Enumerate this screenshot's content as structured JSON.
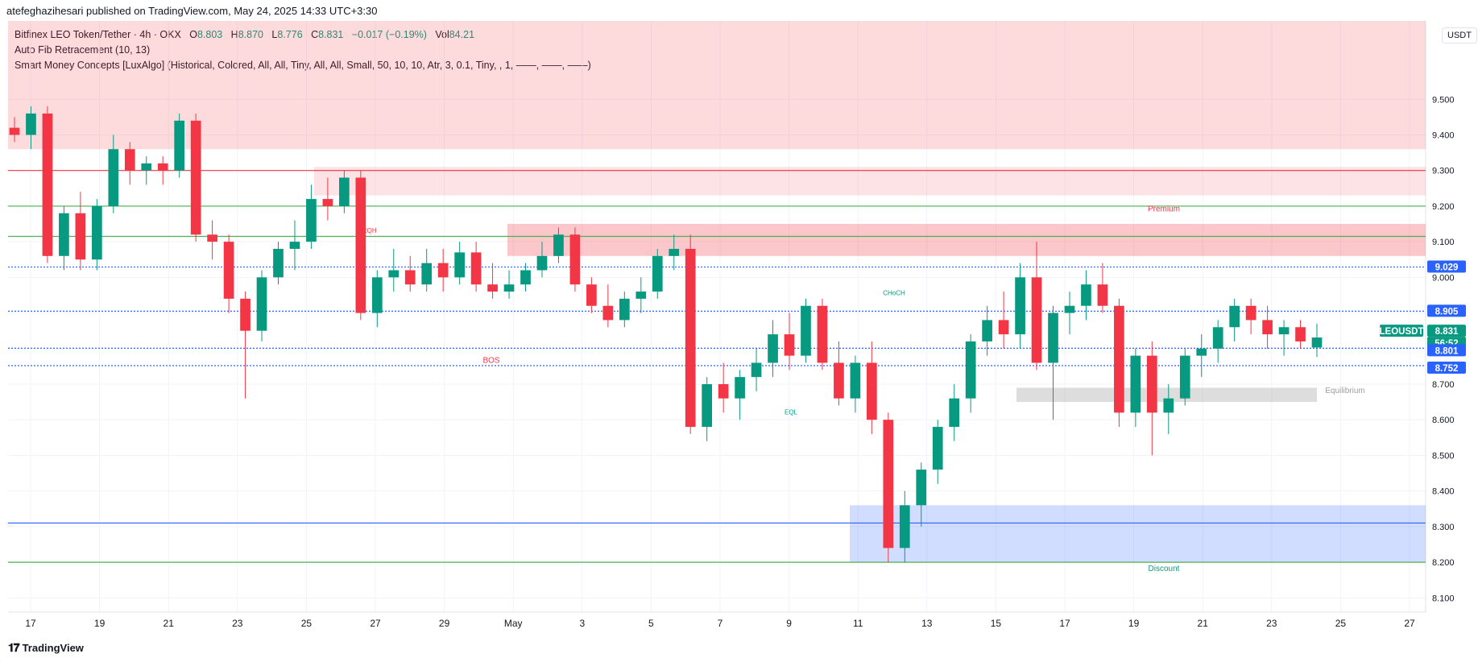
{
  "header": {
    "published_by": "atefeghazihesari published on TradingView.com, May 24, 2025 14:33 UTC+3:30"
  },
  "legend": {
    "symbol_name": "Bitfinex LEO Token/Tether · 4h · OKX",
    "o_label": "O",
    "o": "8.803",
    "h_label": "H",
    "h": "8.870",
    "l_label": "L",
    "l": "8.776",
    "c_label": "C",
    "c": "8.831",
    "change": "−0.017 (−0.19%)",
    "vol_label": "Vol",
    "vol": "84.21",
    "indicator_1": "Auto Fib Retracement (10, 13)",
    "indicator_2": "Smart Money Concepts [LuxAlgo] (Historical, Colored, All, All, Tiny, All, All, Small, 50, 10, 10, Atr, 3, 0.1, Tiny, , 1, ——, ——, ——)"
  },
  "currency_button": "USDT",
  "footer": {
    "brand": "TradingView"
  },
  "colors": {
    "up": "#089981",
    "down": "#f23645",
    "blue": "#2962ff",
    "grid": "#f0f3fa"
  },
  "chart_data": {
    "type": "candlestick",
    "symbol": "LEOUSDT",
    "timeframe": "4h",
    "ylim": [
      8.06,
      9.72
    ],
    "y_ticks": [
      "9.500",
      "9.400",
      "9.300",
      "9.200",
      "9.100",
      "9.000",
      "8.900",
      "8.800",
      "8.700",
      "8.600",
      "8.500",
      "8.400",
      "8.300",
      "8.200",
      "8.100"
    ],
    "x_ticks": [
      "17",
      "19",
      "21",
      "23",
      "25",
      "27",
      "29",
      "May",
      "3",
      "5",
      "7",
      "9",
      "11",
      "13",
      "15",
      "17",
      "19",
      "21",
      "23",
      "25",
      "27"
    ],
    "candles_approx": [
      [
        9.42,
        9.45,
        9.38,
        9.4
      ],
      [
        9.4,
        9.48,
        9.36,
        9.46
      ],
      [
        9.46,
        9.48,
        9.04,
        9.06
      ],
      [
        9.06,
        9.2,
        9.02,
        9.18
      ],
      [
        9.18,
        9.24,
        9.02,
        9.05
      ],
      [
        9.05,
        9.22,
        9.02,
        9.2
      ],
      [
        9.2,
        9.4,
        9.18,
        9.36
      ],
      [
        9.36,
        9.38,
        9.26,
        9.3
      ],
      [
        9.3,
        9.34,
        9.26,
        9.32
      ],
      [
        9.32,
        9.34,
        9.26,
        9.3
      ],
      [
        9.3,
        9.46,
        9.28,
        9.44
      ],
      [
        9.44,
        9.46,
        9.1,
        9.12
      ],
      [
        9.12,
        9.16,
        9.05,
        9.1
      ],
      [
        9.1,
        9.12,
        8.9,
        8.94
      ],
      [
        8.94,
        8.96,
        8.66,
        8.85
      ],
      [
        8.85,
        9.02,
        8.82,
        9.0
      ],
      [
        9.0,
        9.1,
        8.98,
        9.08
      ],
      [
        9.08,
        9.16,
        9.02,
        9.1
      ],
      [
        9.1,
        9.26,
        9.08,
        9.22
      ],
      [
        9.22,
        9.28,
        9.16,
        9.2
      ],
      [
        9.2,
        9.3,
        9.18,
        9.28
      ],
      [
        9.28,
        9.3,
        8.88,
        8.9
      ],
      [
        8.9,
        9.02,
        8.86,
        9.0
      ],
      [
        9.0,
        9.08,
        8.96,
        9.02
      ],
      [
        9.02,
        9.06,
        8.96,
        8.98
      ],
      [
        8.98,
        9.08,
        8.96,
        9.04
      ],
      [
        9.04,
        9.08,
        8.96,
        9.0
      ],
      [
        9.0,
        9.1,
        8.98,
        9.07
      ],
      [
        9.07,
        9.1,
        8.96,
        8.98
      ],
      [
        8.98,
        9.04,
        8.94,
        8.96
      ],
      [
        8.96,
        9.02,
        8.94,
        8.98
      ],
      [
        8.98,
        9.04,
        8.96,
        9.02
      ],
      [
        9.02,
        9.1,
        9.0,
        9.06
      ],
      [
        9.06,
        9.14,
        9.04,
        9.12
      ],
      [
        9.12,
        9.14,
        8.96,
        8.98
      ],
      [
        8.98,
        9.0,
        8.9,
        8.92
      ],
      [
        8.92,
        8.98,
        8.86,
        8.88
      ],
      [
        8.88,
        8.96,
        8.86,
        8.94
      ],
      [
        8.94,
        9.0,
        8.9,
        8.96
      ],
      [
        8.96,
        9.08,
        8.94,
        9.06
      ],
      [
        9.06,
        9.12,
        9.02,
        9.08
      ],
      [
        9.08,
        9.12,
        8.56,
        8.58
      ],
      [
        8.58,
        8.72,
        8.54,
        8.7
      ],
      [
        8.7,
        8.76,
        8.62,
        8.66
      ],
      [
        8.66,
        8.74,
        8.6,
        8.72
      ],
      [
        8.72,
        8.8,
        8.68,
        8.76
      ],
      [
        8.76,
        8.88,
        8.72,
        8.84
      ],
      [
        8.84,
        8.9,
        8.74,
        8.78
      ],
      [
        8.78,
        8.94,
        8.76,
        8.92
      ],
      [
        8.92,
        8.94,
        8.74,
        8.76
      ],
      [
        8.76,
        8.82,
        8.64,
        8.66
      ],
      [
        8.66,
        8.78,
        8.62,
        8.76
      ],
      [
        8.76,
        8.82,
        8.56,
        8.6
      ],
      [
        8.6,
        8.62,
        8.2,
        8.24
      ],
      [
        8.24,
        8.4,
        8.2,
        8.36
      ],
      [
        8.36,
        8.48,
        8.3,
        8.46
      ],
      [
        8.46,
        8.6,
        8.42,
        8.58
      ],
      [
        8.58,
        8.7,
        8.54,
        8.66
      ],
      [
        8.66,
        8.84,
        8.62,
        8.82
      ],
      [
        8.82,
        8.92,
        8.78,
        8.88
      ],
      [
        8.88,
        8.96,
        8.8,
        8.84
      ],
      [
        8.84,
        9.04,
        8.8,
        9.0
      ],
      [
        9.0,
        9.1,
        8.74,
        8.76
      ],
      [
        8.76,
        8.92,
        8.6,
        8.9
      ],
      [
        8.9,
        8.96,
        8.84,
        8.92
      ],
      [
        8.92,
        9.02,
        8.88,
        8.98
      ],
      [
        8.98,
        9.04,
        8.9,
        8.92
      ],
      [
        8.92,
        8.94,
        8.58,
        8.62
      ],
      [
        8.62,
        8.8,
        8.58,
        8.78
      ],
      [
        8.78,
        8.82,
        8.5,
        8.62
      ],
      [
        8.62,
        8.7,
        8.56,
        8.66
      ],
      [
        8.66,
        8.8,
        8.64,
        8.78
      ],
      [
        8.78,
        8.84,
        8.72,
        8.8
      ],
      [
        8.8,
        8.88,
        8.76,
        8.86
      ],
      [
        8.86,
        8.94,
        8.82,
        8.92
      ],
      [
        8.92,
        8.94,
        8.84,
        8.88
      ],
      [
        8.88,
        8.92,
        8.8,
        8.84
      ],
      [
        8.84,
        8.88,
        8.78,
        8.86
      ],
      [
        8.86,
        8.88,
        8.8,
        8.82
      ],
      [
        8.803,
        8.87,
        8.776,
        8.831
      ]
    ],
    "horizontal_lines": [
      {
        "value": 9.3,
        "color": "#f23645"
      },
      {
        "value": 9.2,
        "color": "#4caf50"
      },
      {
        "value": 9.115,
        "color": "#4caf50"
      },
      {
        "value": 9.029,
        "color": "#2962ff",
        "dashed": true
      },
      {
        "value": 8.905,
        "color": "#2962ff",
        "dashed": true
      },
      {
        "value": 8.801,
        "color": "#2962ff",
        "dashed": true
      },
      {
        "value": 8.752,
        "color": "#2962ff",
        "dashed": true
      },
      {
        "value": 8.31,
        "color": "#2962ff"
      },
      {
        "value": 8.2,
        "color": "#4caf50"
      }
    ],
    "zones": [
      {
        "name": "top-red",
        "from": 9.36,
        "to": 9.72,
        "color": "#f23645"
      },
      {
        "name": "upper-red",
        "from": 9.23,
        "to": 9.31,
        "color": "#f23645"
      },
      {
        "name": "premium",
        "from": 9.06,
        "to": 9.15,
        "color": "#f23645"
      },
      {
        "name": "equilibrium",
        "from": 8.65,
        "to": 8.69,
        "color": "#9e9e9e"
      },
      {
        "name": "discount",
        "from": 8.2,
        "to": 8.36,
        "color": "#2962ff"
      }
    ],
    "annotations": [
      "Premium",
      "Equilibrium",
      "Discount",
      "BOS",
      "CHoCH",
      "EQH",
      "EQL"
    ],
    "price_labels": [
      {
        "text": "9.029",
        "value": 9.029
      },
      {
        "text": "8.905",
        "value": 8.905
      },
      {
        "text": "LEOUSDT",
        "value": 8.831
      },
      {
        "text": "8.831",
        "value": 8.831
      },
      {
        "text": "56:52",
        "value": 8.831
      },
      {
        "text": "8.801",
        "value": 8.801
      },
      {
        "text": "8.752",
        "value": 8.752
      }
    ]
  }
}
